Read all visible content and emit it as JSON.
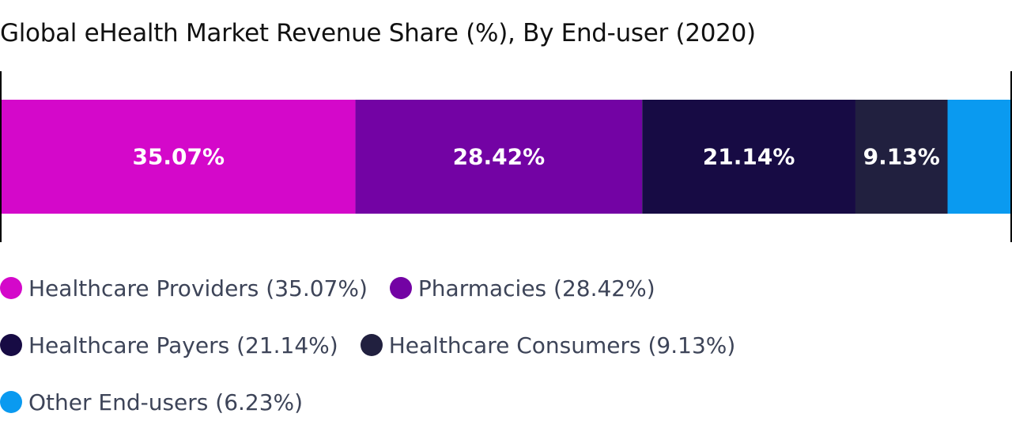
{
  "chart_data": {
    "type": "bar",
    "stacked": true,
    "orientation": "horizontal",
    "title": "Global eHealth Market Revenue Share (%), By End-user (2020)",
    "categories": [
      "Healthcare Providers",
      "Pharmacies",
      "Healthcare Payers",
      "Healthcare Consumers",
      "Other End-users"
    ],
    "values": [
      35.07,
      28.42,
      21.14,
      9.13,
      6.23
    ],
    "unit": "%",
    "colors": [
      "#d408ca",
      "#7303a4",
      "#170b44",
      "#21203f",
      "#0a9af0"
    ],
    "data_labels": [
      "35.07%",
      "28.42%",
      "21.14%",
      "9.13%",
      ""
    ],
    "xlim": [
      0,
      100
    ],
    "grid": false,
    "legend_placement": "bottom"
  },
  "legend": {
    "rows": [
      [
        {
          "label": "Healthcare Providers (35.07%)",
          "color": "#d408ca"
        },
        {
          "label": "Pharmacies (28.42%)",
          "color": "#7303a4"
        }
      ],
      [
        {
          "label": "Healthcare Payers (21.14%)",
          "color": "#170b44"
        },
        {
          "label": "Healthcare Consumers (9.13%)",
          "color": "#21203f"
        }
      ],
      [
        {
          "label": "Other End-users (6.23%)",
          "color": "#0a9af0"
        }
      ]
    ]
  }
}
